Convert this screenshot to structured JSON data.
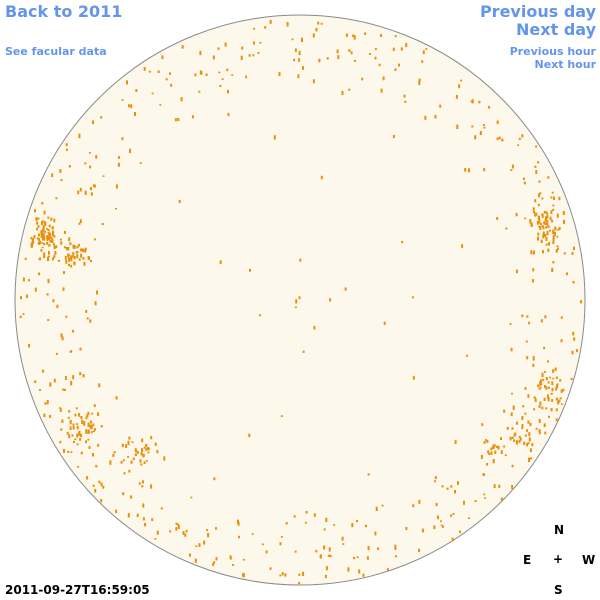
{
  "nav": {
    "back_label": "Back to 2011",
    "facular_label": "See facular data",
    "prev_day_label": "Previous day",
    "next_day_label": "Next day",
    "prev_hour_label": "Previous hour",
    "next_hour_label": "Next hour"
  },
  "compass": {
    "north": "N",
    "east": "E",
    "center": "+",
    "west": "W",
    "south": "S"
  },
  "timestamp": "2011-09-27T16:59:05",
  "colors": {
    "link": "#6495ed",
    "disk_fill": "#fdf8ec",
    "disk_outline": "#8a8a8a",
    "facula": "#e8900c"
  },
  "icons": {
    "compass_center": "plus-icon"
  }
}
